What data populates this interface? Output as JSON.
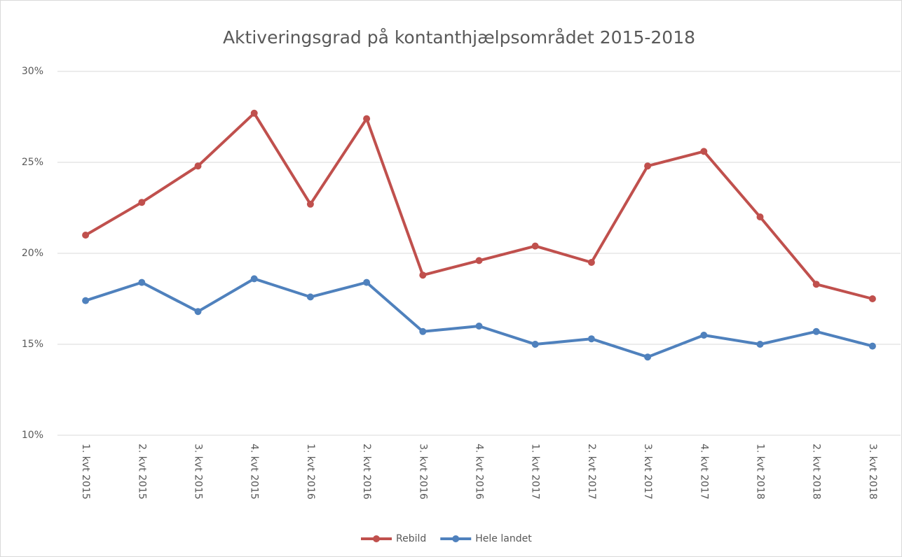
{
  "chart_data": {
    "type": "line",
    "title": "Aktiveringsgrad på kontanthjælpsområdet 2015-2018",
    "categories": [
      "1. kvt 2015",
      "2. kvt 2015",
      "3. kvt 2015",
      "4. kvt 2015",
      "1. kvt 2016",
      "2. kvt 2016",
      "3. kvt 2016",
      "4. kvt 2016",
      "1. kvt 2017",
      "2. kvt 2017",
      "3. kvt 2017",
      "4. kvt 2017",
      "1. kvt 2018",
      "2. kvt 2018",
      "3. kvt 2018"
    ],
    "series": [
      {
        "name": "Rebild",
        "color": "#c0504d",
        "values": [
          21.0,
          22.8,
          24.8,
          27.7,
          22.7,
          27.4,
          18.8,
          19.6,
          20.4,
          19.5,
          24.8,
          25.6,
          22.0,
          18.3,
          17.5
        ]
      },
      {
        "name": "Hele landet",
        "color": "#4f81bd",
        "values": [
          17.4,
          18.4,
          16.8,
          18.6,
          17.6,
          18.4,
          15.7,
          16.0,
          15.0,
          15.3,
          14.3,
          15.5,
          15.0,
          15.7,
          14.9
        ]
      }
    ],
    "ylim": [
      10,
      30
    ],
    "yticks": [
      {
        "value": 10,
        "label": "10%"
      },
      {
        "value": 15,
        "label": "15%"
      },
      {
        "value": 20,
        "label": "20%"
      },
      {
        "value": 25,
        "label": "25%"
      },
      {
        "value": 30,
        "label": "30%"
      }
    ],
    "grid": true,
    "legend": "bottom"
  }
}
